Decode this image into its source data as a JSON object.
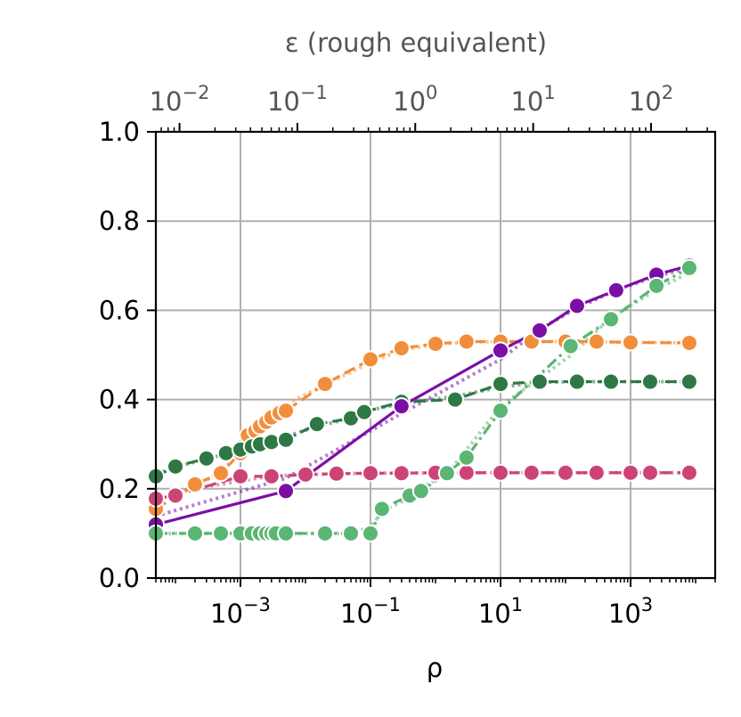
{
  "chart_data": {
    "type": "line",
    "xlabel": "ρ",
    "top_xlabel": "ε (rough equivalent)",
    "ylabel": "",
    "x_scale": "log",
    "xlim": [
      5e-05,
      20000
    ],
    "ylim": [
      0.0,
      1.0
    ],
    "grid": true,
    "legend": "none",
    "y_ticks": [
      "0.0",
      "0.2",
      "0.4",
      "0.6",
      "0.8",
      "1.0"
    ],
    "x_ticks": [
      {
        "value": 0.001,
        "base": "10",
        "exp": "−3"
      },
      {
        "value": 0.1,
        "base": "10",
        "exp": "−1"
      },
      {
        "value": 10,
        "base": "10",
        "exp": "1"
      },
      {
        "value": 1000,
        "base": "10",
        "exp": "3"
      }
    ],
    "top_axis": {
      "scale": "log",
      "xlim": [
        0.0063,
        350
      ],
      "ticks": [
        {
          "value": 0.01,
          "base": "10",
          "exp": "−2"
        },
        {
          "value": 0.1,
          "base": "10",
          "exp": "−1"
        },
        {
          "value": 1,
          "base": "10",
          "exp": "0"
        },
        {
          "value": 10,
          "base": "10",
          "exp": "1"
        },
        {
          "value": 100,
          "base": "10",
          "exp": "2"
        }
      ]
    },
    "series": [
      {
        "color": "#f28e3b",
        "line_style": "dashed",
        "x": [
          5e-05,
          0.0002,
          0.0005,
          0.001,
          0.0013,
          0.0017,
          0.002,
          0.0025,
          0.003,
          0.004,
          0.005,
          0.02,
          0.1,
          0.3,
          1,
          3,
          10,
          30,
          100,
          300,
          1000,
          8000
        ],
        "y": [
          0.155,
          0.21,
          0.235,
          0.28,
          0.32,
          0.33,
          0.34,
          0.35,
          0.36,
          0.37,
          0.375,
          0.435,
          0.49,
          0.515,
          0.525,
          0.53,
          0.53,
          0.53,
          0.53,
          0.53,
          0.528,
          0.527
        ]
      },
      {
        "color": "#2e7845",
        "line_style": "dashed",
        "x": [
          5e-05,
          0.0001,
          0.0003,
          0.0006,
          0.001,
          0.0015,
          0.002,
          0.003,
          0.005,
          0.015,
          0.05,
          0.08,
          0.3,
          2,
          10,
          40,
          150,
          500,
          2000,
          8000
        ],
        "y": [
          0.228,
          0.25,
          0.268,
          0.28,
          0.288,
          0.295,
          0.3,
          0.305,
          0.31,
          0.345,
          0.358,
          0.372,
          0.395,
          0.4,
          0.435,
          0.44,
          0.44,
          0.44,
          0.44,
          0.44
        ]
      },
      {
        "color": "#7a0fa6",
        "line_style": "solid",
        "x": [
          5e-05,
          0.005,
          0.3,
          10,
          40,
          150,
          600,
          2500,
          8000
        ],
        "y": [
          0.12,
          0.195,
          0.385,
          0.51,
          0.555,
          0.61,
          0.645,
          0.68,
          0.7
        ]
      },
      {
        "color": "#cc4477",
        "line_style": "dashed",
        "x": [
          5e-05,
          0.0001,
          0.001,
          0.003,
          0.01,
          0.03,
          0.1,
          0.3,
          1,
          3,
          10,
          30,
          100,
          300,
          1000,
          2000,
          8000
        ],
        "y": [
          0.178,
          0.185,
          0.228,
          0.228,
          0.232,
          0.234,
          0.235,
          0.235,
          0.236,
          0.236,
          0.236,
          0.236,
          0.236,
          0.236,
          0.236,
          0.236,
          0.236
        ]
      },
      {
        "color": "#5bb573",
        "line_style": "dashdot",
        "x": [
          5e-05,
          0.0002,
          0.0005,
          0.001,
          0.0015,
          0.002,
          0.0025,
          0.003,
          0.0035,
          0.005,
          0.02,
          0.05,
          0.1,
          0.15,
          0.4,
          0.6,
          1.5,
          3,
          10,
          120,
          500,
          2500,
          8000
        ],
        "y": [
          0.1,
          0.1,
          0.1,
          0.1,
          0.1,
          0.1,
          0.1,
          0.1,
          0.1,
          0.1,
          0.1,
          0.1,
          0.1,
          0.155,
          0.185,
          0.195,
          0.235,
          0.27,
          0.375,
          0.52,
          0.58,
          0.655,
          0.695
        ]
      }
    ]
  }
}
